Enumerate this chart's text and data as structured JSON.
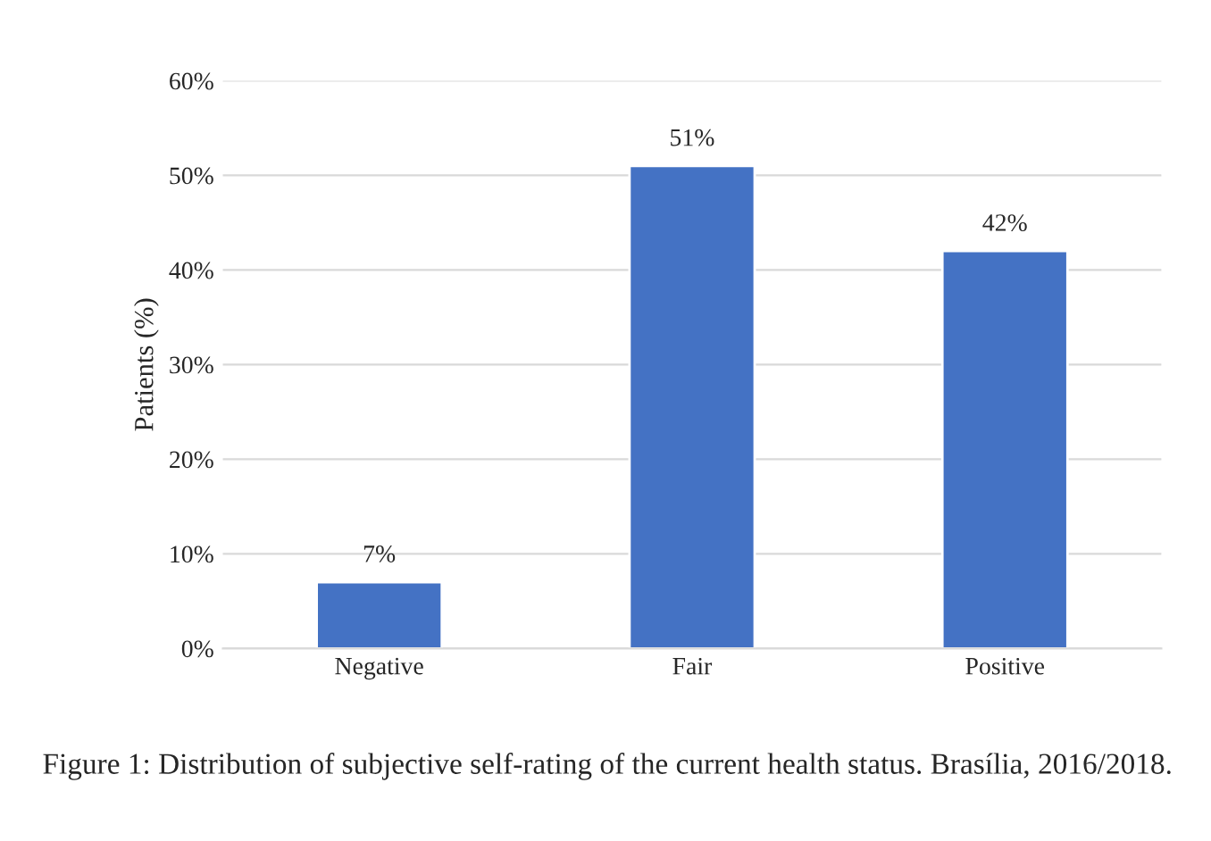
{
  "chart_data": {
    "type": "bar",
    "ylabel": "Patients (%)",
    "categories": [
      "Negative",
      "Fair",
      "Positive"
    ],
    "values": [
      7,
      51,
      42
    ],
    "color": "#4472c4",
    "value_labels": [
      "7%",
      "51%",
      "42%"
    ],
    "ylim": [
      0,
      60
    ],
    "yticks": [
      {
        "value": 0,
        "label": "0%"
      },
      {
        "value": 10,
        "label": "10%"
      },
      {
        "value": 20,
        "label": "20%"
      },
      {
        "value": 30,
        "label": "30%"
      },
      {
        "value": 40,
        "label": "40%"
      },
      {
        "value": 50,
        "label": "50%"
      },
      {
        "value": 60,
        "label": "60%"
      }
    ],
    "grid": "y",
    "legend": false,
    "annotations": [
      "Figure 1: Distribution of subjective self-rating of the current health status. Brasília, 2016/2018."
    ]
  }
}
